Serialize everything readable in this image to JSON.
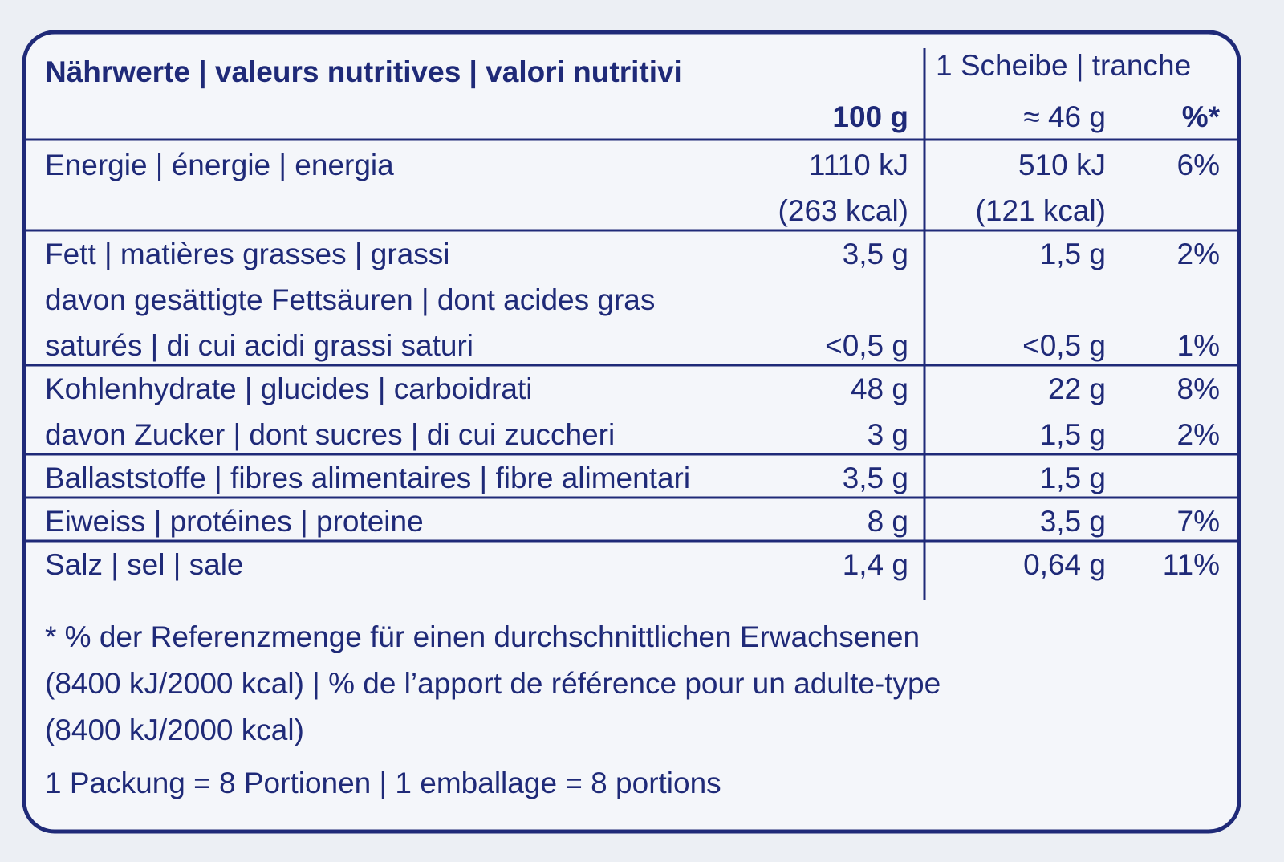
{
  "header": {
    "title": "Nährwerte | valeurs nutritives | valori nutritivi",
    "serving_title": "1 Scheibe | tranche",
    "col_100g": "100 g",
    "col_serving": "≈ 46 g",
    "col_percent": "%*"
  },
  "sections": [
    {
      "rows": [
        {
          "label": [
            "Energie | énergie | energia"
          ],
          "per_100g": [
            "1110 kJ",
            "(263 kcal)"
          ],
          "per_serving": [
            "510 kJ",
            "(121 kcal)"
          ],
          "percent": "6%"
        }
      ]
    },
    {
      "rows": [
        {
          "label": [
            "Fett | matières grasses | grassi"
          ],
          "per_100g": "3,5 g",
          "per_serving": "1,5 g",
          "percent": "2%"
        },
        {
          "label": [
            "davon gesättigte Fettsäuren | dont acides gras",
            "saturés | di cui acidi grassi saturi"
          ],
          "per_100g": "<0,5 g",
          "per_serving": "<0,5 g",
          "percent": "1%"
        }
      ]
    },
    {
      "rows": [
        {
          "label": [
            "Kohlenhydrate | glucides | carboidrati"
          ],
          "per_100g": "48 g",
          "per_serving": "22 g",
          "percent": "8%"
        },
        {
          "label": [
            "davon Zucker | dont sucres | di cui zuccheri"
          ],
          "per_100g": "3 g",
          "per_serving": "1,5 g",
          "percent": "2%"
        }
      ]
    },
    {
      "rows": [
        {
          "label": [
            "Ballaststoffe | fibres alimentaires | fibre alimentari"
          ],
          "per_100g": "3,5 g",
          "per_serving": "1,5 g"
        }
      ]
    },
    {
      "rows": [
        {
          "label": [
            "Eiweiss | protéines | proteine"
          ],
          "per_100g": "8 g",
          "per_serving": "3,5 g",
          "percent": "7%"
        }
      ]
    },
    {
      "rows": [
        {
          "label": [
            "Salz | sel | sale"
          ],
          "per_100g": "1,4 g",
          "per_serving": "0,64 g",
          "percent": "11%"
        }
      ]
    }
  ],
  "footnote": [
    "* % der Referenzmenge für einen durchschnittlichen Erwachsenen",
    "(8400 kJ/2000 kcal) | % de l’apport de référence pour un adulte-type",
    "(8400 kJ/2000 kcal)"
  ],
  "packaging": "1 Packung = 8 Portionen | 1 emballage = 8 portions"
}
